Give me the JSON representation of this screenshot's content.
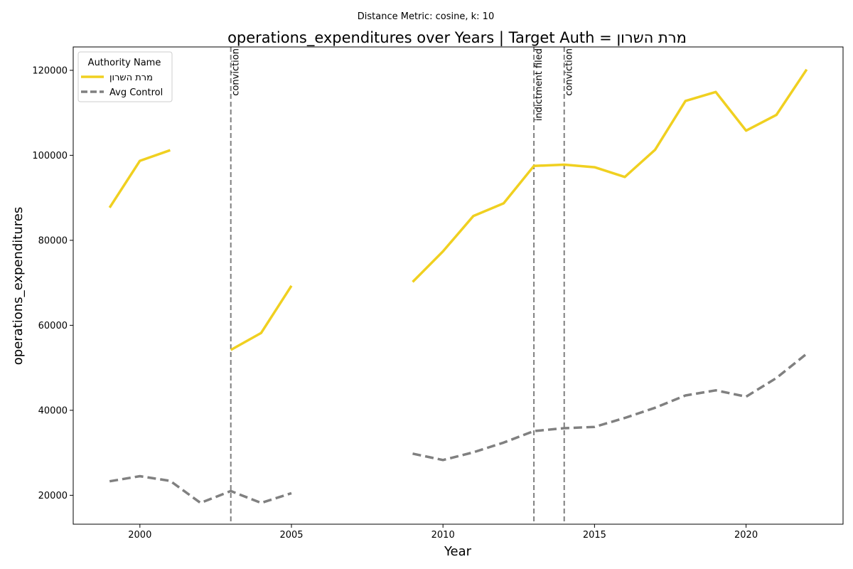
{
  "chart_data": {
    "type": "line",
    "suptitle": "Distance Metric: cosine, k: 10",
    "title": "operations_expenditures over Years | Target Auth = מרת השרון",
    "xlabel": "Year",
    "ylabel": "operations_expenditures",
    "xlim": [
      1997.8,
      2023.2
    ],
    "ylim": [
      13200,
      125500
    ],
    "x_ticks": [
      2000,
      2005,
      2010,
      2015,
      2020
    ],
    "y_ticks": [
      20000,
      40000,
      60000,
      80000,
      100000,
      120000
    ],
    "grid": false,
    "legend": {
      "title": "Authority Name",
      "placement": "top-left"
    },
    "series": [
      {
        "name": "מרת השרון",
        "color": "#f0d020",
        "style": "solid",
        "segments": [
          [
            [
              1999,
              87700
            ],
            [
              2000,
              98700
            ],
            [
              2001,
              101200
            ]
          ],
          [
            [
              2003,
              54200
            ],
            [
              2004,
              58200
            ],
            [
              2005,
              69300
            ]
          ],
          [
            [
              2009,
              70200
            ],
            [
              2010,
              77400
            ],
            [
              2011,
              85700
            ],
            [
              2012,
              88700
            ],
            [
              2013,
              97500
            ],
            [
              2014,
              97800
            ],
            [
              2015,
              97200
            ],
            [
              2016,
              94900
            ],
            [
              2017,
              101300
            ],
            [
              2018,
              112800
            ],
            [
              2019,
              114900
            ],
            [
              2020,
              105800
            ],
            [
              2021,
              109500
            ],
            [
              2022,
              120200
            ]
          ]
        ]
      },
      {
        "name": "Avg Control",
        "color": "#808080",
        "style": "dashed",
        "segments": [
          [
            [
              1999,
              23300
            ],
            [
              2000,
              24500
            ],
            [
              2001,
              23400
            ],
            [
              2002,
              18200
            ],
            [
              2003,
              21000
            ],
            [
              2004,
              18200
            ],
            [
              2005,
              20500
            ]
          ],
          [
            [
              2009,
              29800
            ],
            [
              2010,
              28300
            ],
            [
              2011,
              30100
            ],
            [
              2012,
              32400
            ],
            [
              2013,
              35100
            ],
            [
              2014,
              35800
            ],
            [
              2015,
              36100
            ],
            [
              2016,
              38200
            ],
            [
              2017,
              40600
            ],
            [
              2018,
              43500
            ],
            [
              2019,
              44700
            ],
            [
              2020,
              43200
            ],
            [
              2021,
              47600
            ],
            [
              2022,
              53300
            ]
          ]
        ]
      }
    ],
    "events": [
      {
        "x": 2003,
        "label": "conviction"
      },
      {
        "x": 2013,
        "label": "indictment filed"
      },
      {
        "x": 2014,
        "label": "conviction"
      }
    ]
  }
}
